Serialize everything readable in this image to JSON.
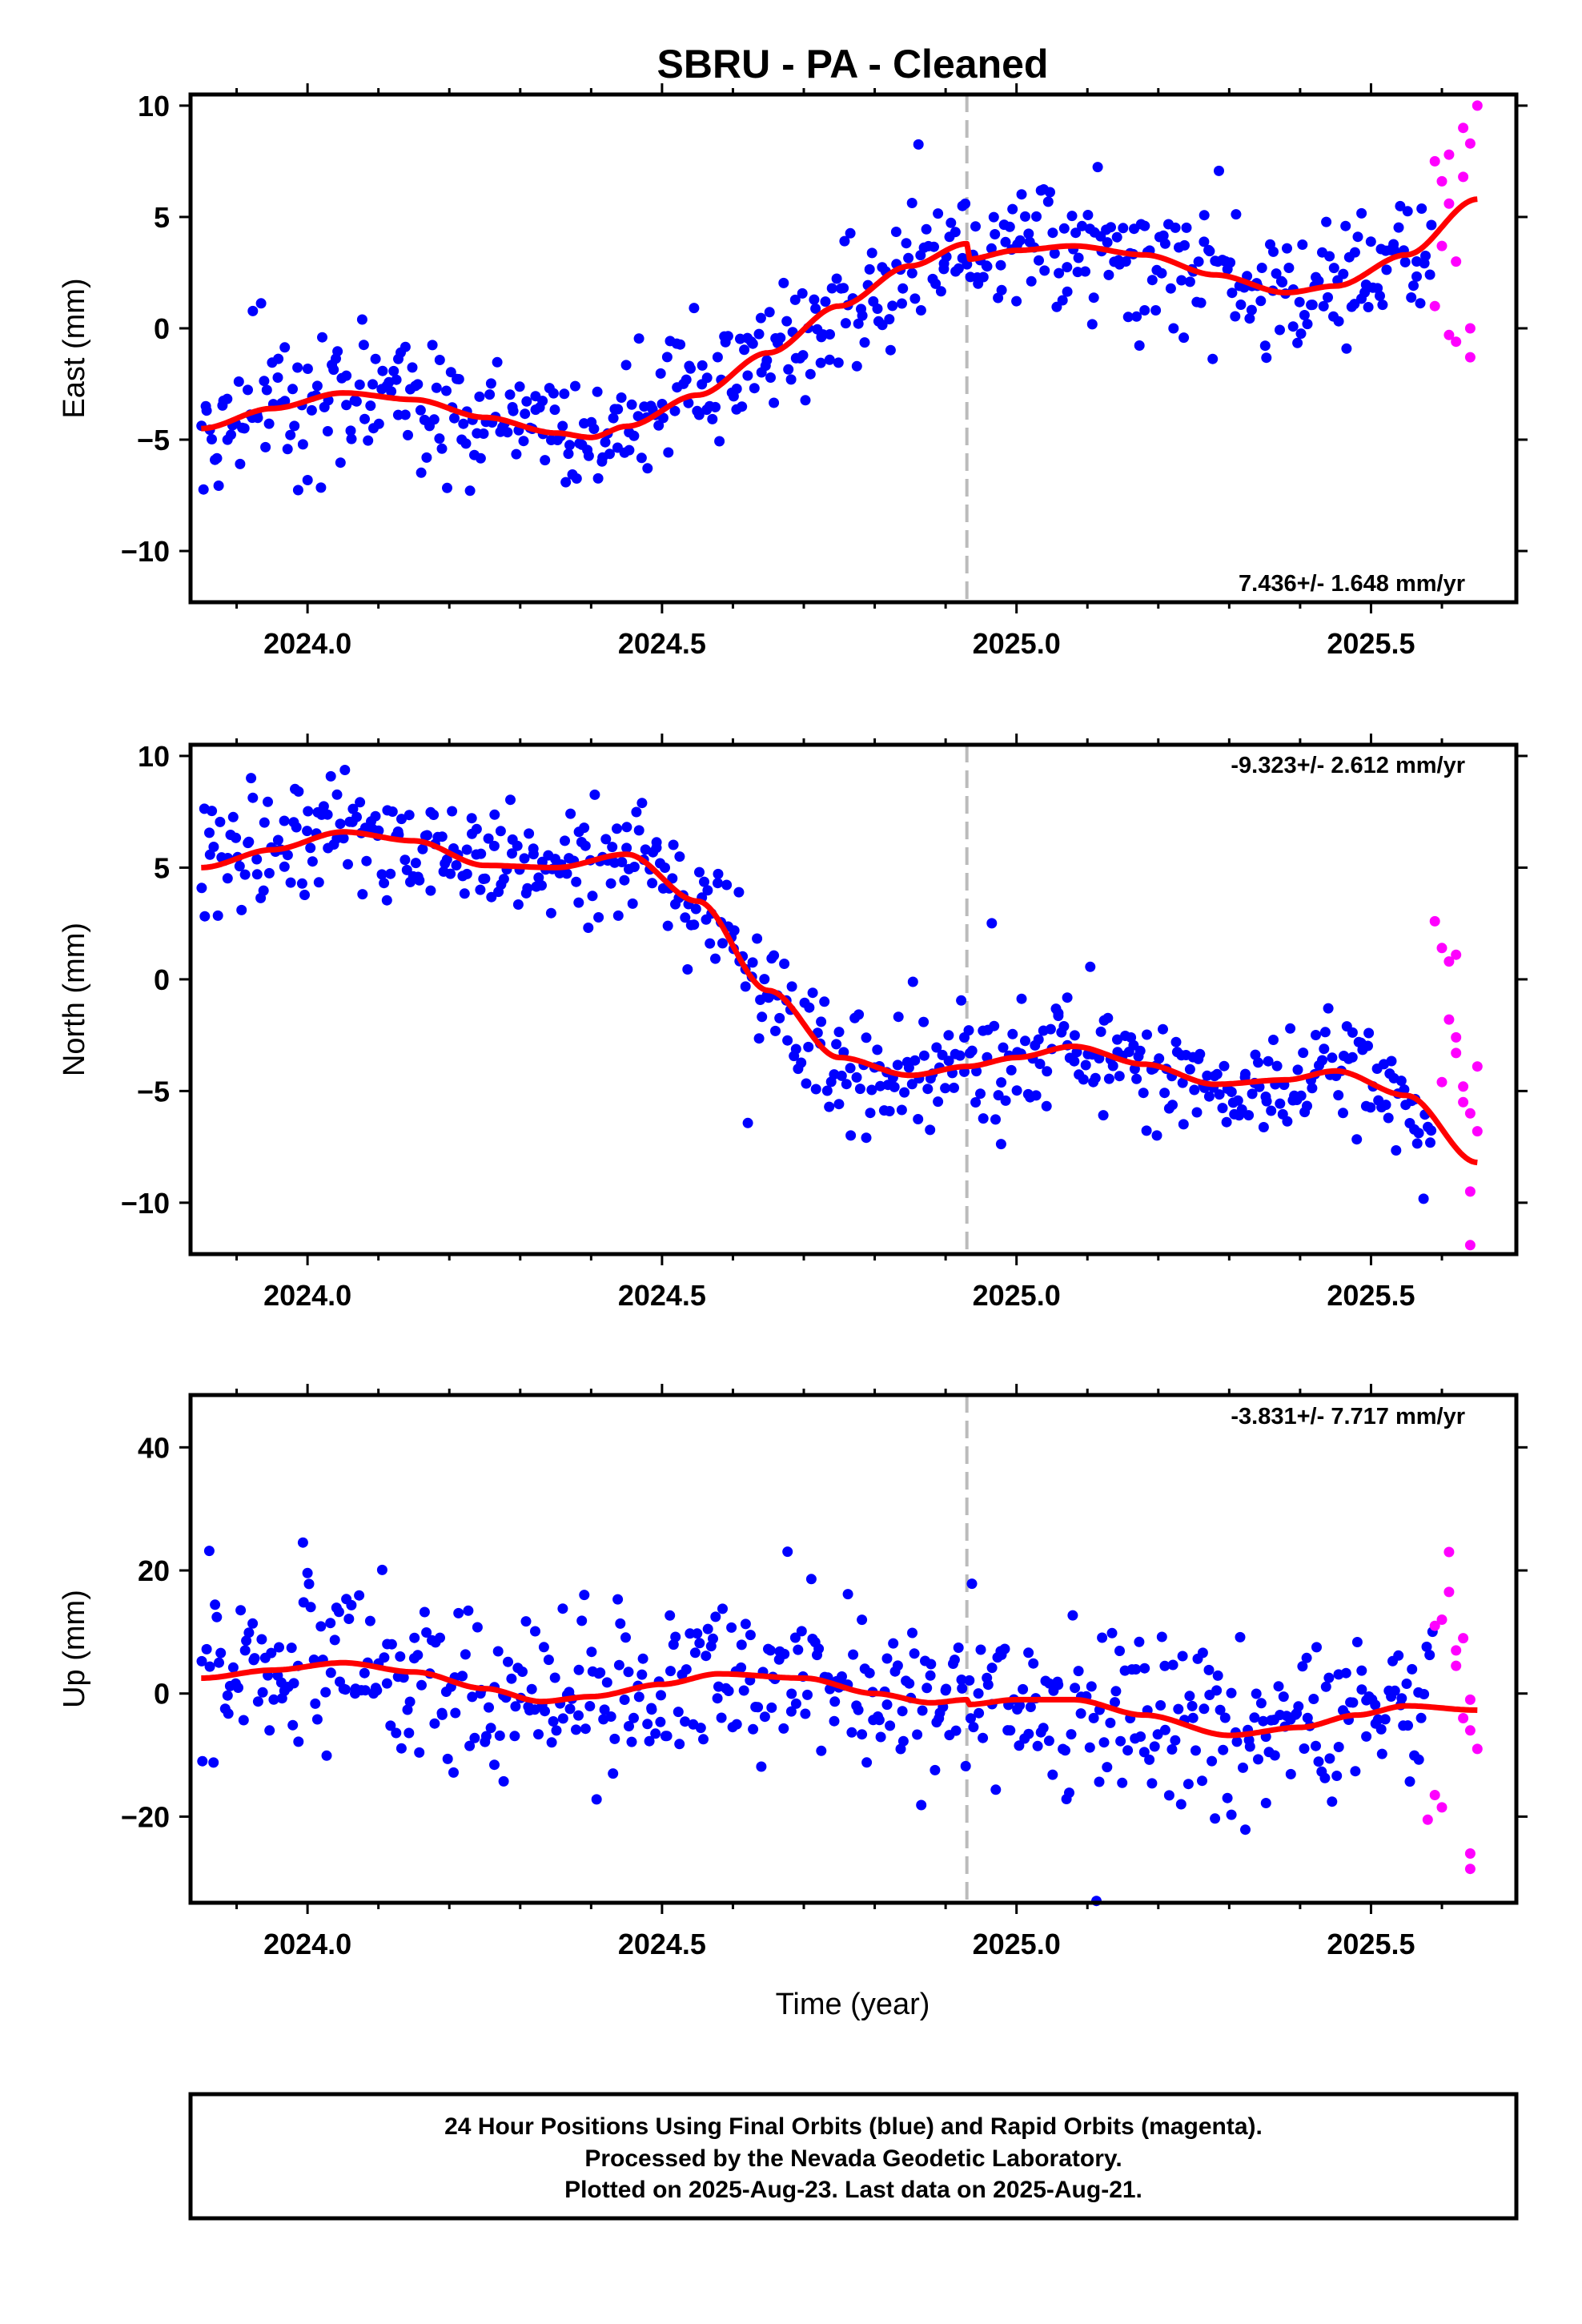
{
  "title": "SBRU  - PA - Cleaned",
  "xlabel": "Time (year)",
  "footer": [
    "24 Hour Positions Using Final Orbits (blue) and Rapid Orbits (magenta).",
    "Processed by the Nevada Geodetic Laboratory.",
    "Plotted on 2025-Aug-23. Last data on 2025-Aug-21."
  ],
  "colors": {
    "final": "#0000ff",
    "rapid": "#ff00ff",
    "model": "#ff0000",
    "marker_line": "#bbbbbb"
  },
  "chart_data": [
    {
      "type": "scatter",
      "ylabel": "East (mm)",
      "rate_text": "7.436+/- 1.648 mm/yr",
      "xlim": [
        2023.835,
        2025.705
      ],
      "ylim": [
        -12.3,
        10.5
      ],
      "xticks": [
        "2024.0",
        "2024.5",
        "2025.0",
        "2025.5"
      ],
      "yticks": [
        "10",
        "5",
        "0",
        "−5",
        "−10"
      ],
      "ytick_values": [
        10,
        5,
        0,
        -5,
        -10
      ],
      "equipment_change": 2024.93,
      "model_knots": [
        [
          2023.85,
          -4.5
        ],
        [
          2023.95,
          -3.6
        ],
        [
          2024.05,
          -2.9
        ],
        [
          2024.15,
          -3.2
        ],
        [
          2024.25,
          -4.0
        ],
        [
          2024.35,
          -4.7
        ],
        [
          2024.4,
          -4.9
        ],
        [
          2024.45,
          -4.4
        ],
        [
          2024.55,
          -3.0
        ],
        [
          2024.65,
          -1.1
        ],
        [
          2024.75,
          1.0
        ],
        [
          2024.85,
          2.8
        ],
        [
          2024.93,
          3.8
        ],
        [
          2024.93,
          3.1
        ],
        [
          2025.0,
          3.5
        ],
        [
          2025.08,
          3.7
        ],
        [
          2025.18,
          3.3
        ],
        [
          2025.28,
          2.4
        ],
        [
          2025.38,
          1.6
        ],
        [
          2025.45,
          1.9
        ],
        [
          2025.55,
          3.3
        ],
        [
          2025.65,
          5.8
        ]
      ],
      "series_noise": 1.4,
      "rapid": [
        [
          2025.59,
          7.5
        ],
        [
          2025.6,
          6.6
        ],
        [
          2025.61,
          5.6
        ],
        [
          2025.6,
          3.7
        ],
        [
          2025.59,
          1.0
        ],
        [
          2025.62,
          3.0
        ],
        [
          2025.61,
          7.8
        ],
        [
          2025.63,
          6.8
        ],
        [
          2025.62,
          -0.6
        ],
        [
          2025.64,
          -1.3
        ],
        [
          2025.63,
          9.0
        ],
        [
          2025.64,
          8.3
        ],
        [
          2025.65,
          10.0
        ],
        [
          2025.64,
          0.0
        ],
        [
          2025.61,
          -0.3
        ]
      ]
    },
    {
      "type": "scatter",
      "ylabel": "North (mm)",
      "rate_text": "-9.323+/- 2.612 mm/yr",
      "xlim": [
        2023.835,
        2025.705
      ],
      "ylim": [
        -12.3,
        10.5
      ],
      "xticks": [
        "2024.0",
        "2024.5",
        "2025.0",
        "2025.5"
      ],
      "yticks": [
        "10",
        "5",
        "0",
        "−5",
        "−10"
      ],
      "ytick_values": [
        10,
        5,
        0,
        -5,
        -10
      ],
      "equipment_change": 2024.93,
      "model_knots": [
        [
          2023.85,
          5.0
        ],
        [
          2023.95,
          5.8
        ],
        [
          2024.05,
          6.6
        ],
        [
          2024.15,
          6.2
        ],
        [
          2024.25,
          5.1
        ],
        [
          2024.35,
          5.0
        ],
        [
          2024.45,
          5.6
        ],
        [
          2024.55,
          3.5
        ],
        [
          2024.65,
          -0.5
        ],
        [
          2024.75,
          -3.5
        ],
        [
          2024.85,
          -4.3
        ],
        [
          2024.93,
          -3.9
        ],
        [
          2025.0,
          -3.5
        ],
        [
          2025.08,
          -3.0
        ],
        [
          2025.18,
          -3.8
        ],
        [
          2025.28,
          -4.7
        ],
        [
          2025.38,
          -4.5
        ],
        [
          2025.45,
          -4.1
        ],
        [
          2025.55,
          -5.2
        ],
        [
          2025.65,
          -8.2
        ]
      ],
      "series_noise": 1.3,
      "rapid": [
        [
          2025.59,
          2.6
        ],
        [
          2025.6,
          1.4
        ],
        [
          2025.61,
          0.8
        ],
        [
          2025.62,
          1.1
        ],
        [
          2025.61,
          -1.8
        ],
        [
          2025.62,
          -3.3
        ],
        [
          2025.63,
          -4.8
        ],
        [
          2025.64,
          -6.0
        ],
        [
          2025.63,
          -5.5
        ],
        [
          2025.64,
          -9.5
        ],
        [
          2025.64,
          -11.9
        ],
        [
          2025.65,
          -3.9
        ],
        [
          2025.62,
          -2.6
        ],
        [
          2025.65,
          -6.8
        ],
        [
          2025.6,
          -4.6
        ]
      ]
    },
    {
      "type": "scatter",
      "ylabel": "Up (mm)",
      "rate_text": "-3.831+/- 7.717 mm/yr",
      "xlim": [
        2023.835,
        2025.705
      ],
      "ylim": [
        -34.0,
        48.5
      ],
      "xticks": [
        "2024.0",
        "2024.5",
        "2025.0",
        "2025.5"
      ],
      "yticks": [
        "40",
        "20",
        "0",
        "−20"
      ],
      "ytick_values": [
        40,
        20,
        0,
        -20
      ],
      "equipment_change": 2024.93,
      "model_knots": [
        [
          2023.85,
          2.5
        ],
        [
          2023.95,
          3.8
        ],
        [
          2024.05,
          5.0
        ],
        [
          2024.15,
          3.5
        ],
        [
          2024.25,
          0.8
        ],
        [
          2024.33,
          -1.3
        ],
        [
          2024.4,
          -0.5
        ],
        [
          2024.5,
          1.5
        ],
        [
          2024.58,
          3.2
        ],
        [
          2024.7,
          2.5
        ],
        [
          2024.8,
          0.0
        ],
        [
          2024.88,
          -1.5
        ],
        [
          2024.93,
          -1.0
        ],
        [
          2024.93,
          -1.8
        ],
        [
          2025.0,
          -1.0
        ],
        [
          2025.08,
          -1.0
        ],
        [
          2025.18,
          -3.5
        ],
        [
          2025.3,
          -6.8
        ],
        [
          2025.4,
          -5.5
        ],
        [
          2025.48,
          -3.5
        ],
        [
          2025.55,
          -2.0
        ],
        [
          2025.65,
          -2.7
        ]
      ],
      "series_noise": 6.5,
      "rapid": [
        [
          2025.59,
          11.0
        ],
        [
          2025.6,
          12.0
        ],
        [
          2025.61,
          16.5
        ],
        [
          2025.61,
          23.0
        ],
        [
          2025.62,
          7.0
        ],
        [
          2025.63,
          9.0
        ],
        [
          2025.62,
          4.5
        ],
        [
          2025.63,
          -4.0
        ],
        [
          2025.64,
          -1.0
        ],
        [
          2025.64,
          -6.0
        ],
        [
          2025.65,
          -9.0
        ],
        [
          2025.64,
          -26.0
        ],
        [
          2025.64,
          -28.5
        ],
        [
          2025.59,
          -16.5
        ],
        [
          2025.6,
          -18.5
        ],
        [
          2025.58,
          -20.5
        ]
      ]
    }
  ]
}
